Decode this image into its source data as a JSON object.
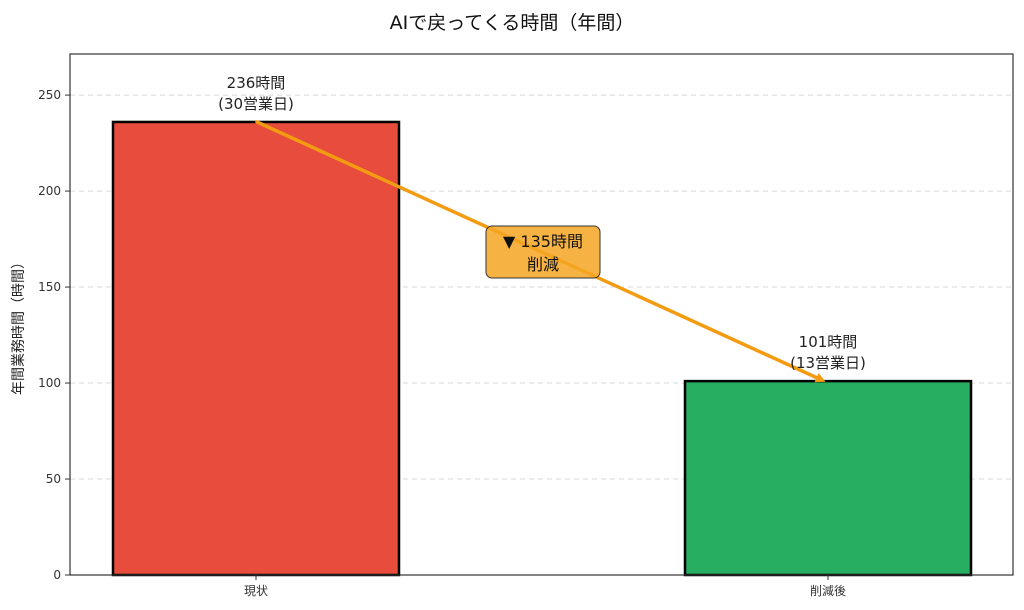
{
  "chart_data": {
    "type": "bar",
    "title": "AIで戻ってくる時間（年間）",
    "xlabel": "",
    "ylabel": "年間業務時間（時間）",
    "categories": [
      "現状",
      "削減後"
    ],
    "values": [
      236,
      101
    ],
    "bar_colors": [
      "#E74C3C",
      "#27AE60"
    ],
    "bar_edge_color": "#000000",
    "data_labels": [
      {
        "line1": "236時間",
        "line2": "(30営業日)"
      },
      {
        "line1": "101時間",
        "line2": "(13営業日)"
      }
    ],
    "ylim": [
      0,
      271.4
    ],
    "yticks": [
      0,
      50,
      100,
      150,
      200,
      250
    ],
    "grid": {
      "axis": "y",
      "style": "dashed",
      "on": true
    },
    "legend": null,
    "annotation": {
      "type": "arrow",
      "from": {
        "category": "現状",
        "value": 236
      },
      "to": {
        "category": "削減後",
        "value": 101
      },
      "color": "#F39C12",
      "box_line1": "▼ 135時間",
      "box_line2": "削減",
      "box_color": "#F5A623"
    }
  }
}
